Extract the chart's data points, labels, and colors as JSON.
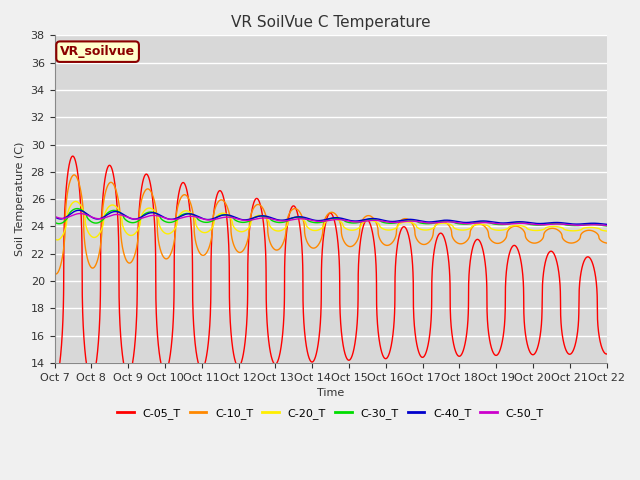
{
  "title": "VR SoilVue C Temperature",
  "xlabel": "Time",
  "ylabel": "Soil Temperature (C)",
  "ylim": [
    14,
    38
  ],
  "xlim": [
    0,
    360
  ],
  "fig_bg_color": "#f0f0f0",
  "plot_bg_color": "#d8d8d8",
  "grid_color": "#ffffff",
  "legend_label": "VR_soilvue",
  "legend_box_color": "#ffffcc",
  "legend_box_edge": "#8B0000",
  "series_names": [
    "C-05_T",
    "C-10_T",
    "C-20_T",
    "C-30_T",
    "C-40_T",
    "C-50_T"
  ],
  "series_colors": [
    "#ff0000",
    "#ff8800",
    "#ffee00",
    "#00dd00",
    "#0000cc",
    "#cc00cc"
  ],
  "c05": {
    "base0": 21.0,
    "base_slope": -0.008,
    "amp0": 8.5,
    "amp_decay": 0.0025,
    "phase": -1.55,
    "period": 24.0
  },
  "c10": {
    "base0": 24.3,
    "base_slope": -0.003,
    "amp0": 3.8,
    "amp_decay": 0.006,
    "phase": -1.0,
    "period": 24.0
  },
  "c20": {
    "base0": 24.5,
    "base_slope": -0.002,
    "amp0": 1.5,
    "amp_decay": 0.007,
    "phase": -0.5,
    "period": 24.0
  },
  "c30": {
    "base0": 24.8,
    "base_slope": -0.002,
    "amp0": 0.6,
    "amp_decay": 0.007,
    "phase": -0.2,
    "period": 24.0
  },
  "c40": {
    "base0": 24.9,
    "base_slope": -0.002,
    "amp0": 0.35,
    "amp_decay": 0.006,
    "phase": 0.0,
    "period": 24.0
  },
  "c50": {
    "base0": 24.8,
    "base_slope": -0.002,
    "amp0": 0.2,
    "amp_decay": 0.005,
    "phase": 0.1,
    "period": 24.0
  },
  "xtick_positions": [
    0,
    24,
    48,
    72,
    96,
    120,
    144,
    168,
    192,
    216,
    240,
    264,
    288,
    312,
    336,
    360
  ],
  "xtick_labels": [
    "Oct 7",
    "Oct 8",
    "Oct 9",
    "Oct 10",
    "Oct 11",
    "Oct 12",
    "Oct 13",
    "Oct 14",
    "Oct 15",
    "Oct 16",
    "Oct 17",
    "Oct 18",
    "Oct 19",
    "Oct 20",
    "Oct 21",
    "Oct 22"
  ],
  "ytick_positions": [
    14,
    16,
    18,
    20,
    22,
    24,
    26,
    28,
    30,
    32,
    34,
    36,
    38
  ],
  "line_width": 1.0,
  "font_size": 8,
  "title_font_size": 11
}
